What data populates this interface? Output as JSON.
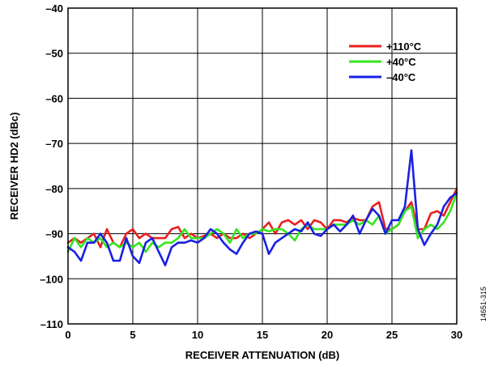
{
  "chart_data": {
    "type": "line",
    "xlabel": "RECEIVER ATTENUATION (dB)",
    "ylabel": "RECEIVER HD2 (dBc)",
    "xlim": [
      0,
      30
    ],
    "ylim": [
      -110,
      -40
    ],
    "x_ticks": [
      0,
      5,
      10,
      15,
      20,
      25,
      30
    ],
    "y_ticks": [
      -40,
      -50,
      -60,
      -70,
      -80,
      -90,
      -100,
      -110
    ],
    "y_tick_labels": [
      "–40",
      "–50",
      "–60",
      "–70",
      "–80",
      "–90",
      "–100",
      "–110"
    ],
    "grid": true,
    "legend_position": "top-right",
    "figure_id": "14651-315",
    "series": [
      {
        "name": "+110°C",
        "color": "#e8201f",
        "x": [
          0,
          0.5,
          1,
          1.5,
          2,
          2.5,
          3,
          3.5,
          4,
          4.5,
          5,
          5.5,
          6,
          6.5,
          7,
          7.5,
          8,
          8.5,
          9,
          9.5,
          10,
          10.5,
          11,
          11.5,
          12,
          12.5,
          13,
          13.5,
          14,
          14.5,
          15,
          15.5,
          16,
          16.5,
          17,
          17.5,
          18,
          18.5,
          19,
          19.5,
          20,
          20.5,
          21,
          21.5,
          22,
          22.5,
          23,
          23.5,
          24,
          24.5,
          25,
          25.5,
          26,
          26.5,
          27,
          27.5,
          28,
          28.5,
          29,
          29.5,
          30
        ],
        "values": [
          -92,
          -91,
          -92,
          -91,
          -90,
          -93,
          -89,
          -92,
          -93,
          -90,
          -89,
          -91,
          -90,
          -91,
          -91,
          -91,
          -89,
          -88.5,
          -91,
          -90,
          -91,
          -90.5,
          -90,
          -91,
          -90,
          -91,
          -91,
          -90,
          -91,
          -90,
          -89,
          -87.5,
          -90,
          -87.5,
          -87,
          -88,
          -87,
          -89,
          -87,
          -87.5,
          -89,
          -87,
          -87,
          -87.5,
          -86.5,
          -87,
          -87,
          -84,
          -83,
          -89,
          -89,
          -88,
          -85,
          -83,
          -89,
          -89,
          -85.5,
          -85,
          -86,
          -83,
          -80
        ]
      },
      {
        "name": "+40°C",
        "color": "#33e51f",
        "x": [
          0,
          0.5,
          1,
          1.5,
          2,
          2.5,
          3,
          3.5,
          4,
          4.5,
          5,
          5.5,
          6,
          6.5,
          7,
          7.5,
          8,
          8.5,
          9,
          9.5,
          10,
          10.5,
          11,
          11.5,
          12,
          12.5,
          13,
          13.5,
          14,
          14.5,
          15,
          15.5,
          16,
          16.5,
          17,
          17.5,
          18,
          18.5,
          19,
          19.5,
          20,
          20.5,
          21,
          21.5,
          22,
          22.5,
          23,
          23.5,
          24,
          24.5,
          25,
          25.5,
          26,
          26.5,
          27,
          27.5,
          28,
          28.5,
          29,
          29.5,
          30
        ],
        "values": [
          -94,
          -91,
          -93,
          -91,
          -92,
          -91,
          -93,
          -92,
          -93,
          -92,
          -93,
          -92,
          -94,
          -92,
          -93,
          -92,
          -92,
          -91,
          -89,
          -91,
          -91,
          -91,
          -90,
          -89,
          -90,
          -92,
          -89,
          -91,
          -90,
          -90,
          -89,
          -89.5,
          -89,
          -89,
          -90,
          -91.5,
          -89,
          -88,
          -89,
          -89,
          -89,
          -88,
          -88,
          -88,
          -87,
          -88,
          -87,
          -88,
          -86,
          -90,
          -89,
          -88,
          -85,
          -84,
          -91,
          -89,
          -88,
          -89,
          -87.5,
          -85,
          -81
        ]
      },
      {
        "name": "–40°C",
        "color": "#1920e3",
        "x": [
          0,
          0.5,
          1,
          1.5,
          2,
          2.5,
          3,
          3.5,
          4,
          4.5,
          5,
          5.5,
          6,
          6.5,
          7,
          7.5,
          8,
          8.5,
          9,
          9.5,
          10,
          10.5,
          11,
          11.5,
          12,
          12.5,
          13,
          13.5,
          14,
          14.5,
          15,
          15.5,
          16,
          16.5,
          17,
          17.5,
          18,
          18.5,
          19,
          19.5,
          20,
          20.5,
          21,
          21.5,
          22,
          22.5,
          23,
          23.5,
          24,
          24.5,
          25,
          25.5,
          26,
          26.5,
          27,
          27.5,
          28,
          28.5,
          29,
          29.5,
          30
        ],
        "values": [
          -93,
          -94,
          -96,
          -92,
          -92,
          -90,
          -92,
          -96,
          -96,
          -91,
          -95,
          -96.5,
          -92,
          -91,
          -94,
          -97,
          -93,
          -92,
          -92,
          -91.5,
          -92,
          -91,
          -89,
          -90,
          -92,
          -93.5,
          -94.5,
          -92,
          -90,
          -89.5,
          -90,
          -94.5,
          -92,
          -91,
          -90,
          -89,
          -89.5,
          -87.5,
          -90,
          -90.5,
          -89,
          -88,
          -89.5,
          -88,
          -86,
          -90,
          -87,
          -84.5,
          -86,
          -90,
          -87,
          -87,
          -84,
          -71.5,
          -89,
          -92.5,
          -90,
          -88,
          -84,
          -82,
          -81
        ]
      }
    ]
  }
}
